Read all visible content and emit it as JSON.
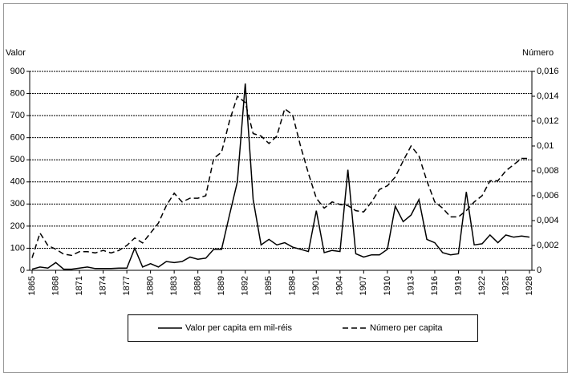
{
  "chart_data": {
    "type": "line",
    "y_label": "Valor",
    "y2_label": "Número",
    "x": [
      1865,
      1866,
      1867,
      1868,
      1869,
      1870,
      1871,
      1872,
      1873,
      1874,
      1875,
      1876,
      1877,
      1878,
      1879,
      1880,
      1881,
      1882,
      1883,
      1884,
      1885,
      1886,
      1887,
      1888,
      1889,
      1890,
      1891,
      1892,
      1893,
      1894,
      1895,
      1896,
      1897,
      1898,
      1899,
      1900,
      1901,
      1902,
      1903,
      1904,
      1905,
      1906,
      1907,
      1908,
      1909,
      1910,
      1911,
      1912,
      1913,
      1914,
      1915,
      1916,
      1917,
      1918,
      1919,
      1920,
      1921,
      1922,
      1923,
      1924,
      1925,
      1926,
      1927,
      1928
    ],
    "xlim": [
      1865,
      1928
    ],
    "xticks": [
      1865,
      1868,
      1871,
      1874,
      1877,
      1880,
      1883,
      1886,
      1889,
      1892,
      1895,
      1898,
      1901,
      1904,
      1907,
      1910,
      1913,
      1916,
      1919,
      1922,
      1925,
      1928
    ],
    "ylim": [
      0,
      900
    ],
    "yticks": [
      0,
      100,
      200,
      300,
      400,
      500,
      600,
      700,
      800,
      900
    ],
    "y2lim": [
      0,
      0.016
    ],
    "y2ticks": [
      0,
      {
        "value": 0.002,
        "label": "0,002"
      },
      {
        "value": 0.004,
        "label": "0,004"
      },
      {
        "value": 0.006,
        "label": "0,006"
      },
      {
        "value": 0.008,
        "label": "0,008"
      },
      {
        "value": 0.01,
        "label": "0,01"
      },
      {
        "value": 0.012,
        "label": "0,012"
      },
      {
        "value": 0.014,
        "label": "0,014"
      },
      {
        "value": 0.016,
        "label": "0,016"
      }
    ],
    "grid": true,
    "legend": "bottom",
    "series": [
      {
        "name": "Valor per capita em mil-réis",
        "color": "#000000",
        "dash": "solid",
        "values": [
          5,
          15,
          10,
          35,
          5,
          5,
          10,
          15,
          8,
          8,
          8,
          10,
          10,
          100,
          15,
          30,
          15,
          40,
          35,
          40,
          60,
          50,
          55,
          95,
          95,
          250,
          400,
          845,
          320,
          115,
          140,
          115,
          125,
          105,
          95,
          85,
          270,
          80,
          90,
          85,
          455,
          75,
          60,
          70,
          70,
          95,
          290,
          220,
          250,
          320,
          140,
          125,
          80,
          70,
          75,
          355,
          115,
          120,
          160,
          125,
          160,
          150,
          155,
          150
        ]
      },
      {
        "name": "Número per capita",
        "color": "#000000",
        "dash": "dashed",
        "axis": "y2",
        "values": [
          0.001,
          0.003,
          0.002,
          0.0017,
          0.0013,
          0.0012,
          0.0015,
          0.0015,
          0.0014,
          0.0016,
          0.0014,
          0.0016,
          0.002,
          0.0026,
          0.0022,
          0.003,
          0.0038,
          0.0052,
          0.0062,
          0.0055,
          0.0058,
          0.0058,
          0.006,
          0.009,
          0.0095,
          0.012,
          0.014,
          0.0135,
          0.011,
          0.0108,
          0.0102,
          0.0108,
          0.013,
          0.0125,
          0.01,
          0.0078,
          0.0058,
          0.005,
          0.0055,
          0.0053,
          0.0052,
          0.0048,
          0.0047,
          0.0055,
          0.0065,
          0.0068,
          0.0075,
          0.0088,
          0.01,
          0.0092,
          0.0072,
          0.0055,
          0.005,
          0.0043,
          0.0043,
          0.0048,
          0.0055,
          0.006,
          0.0072,
          0.0072,
          0.008,
          0.0085,
          0.009,
          0.009
        ]
      }
    ]
  }
}
